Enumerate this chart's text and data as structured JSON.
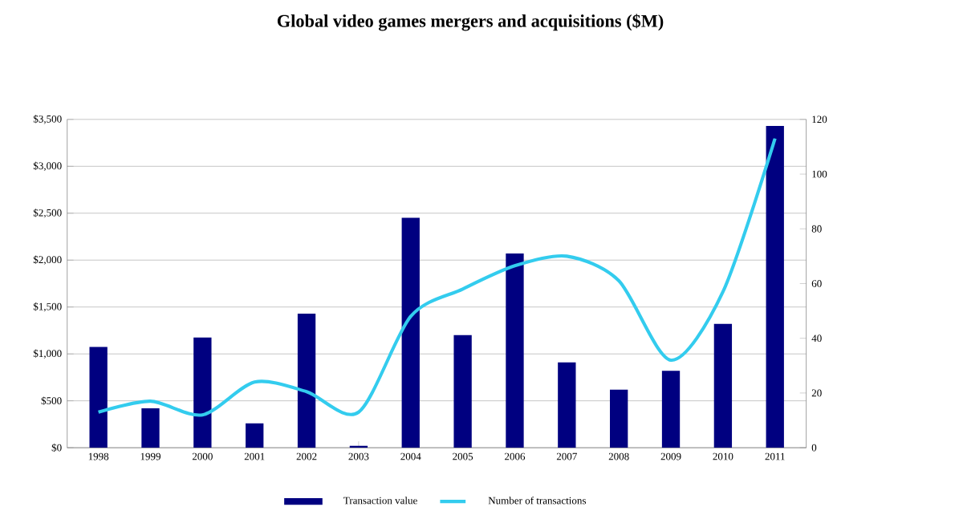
{
  "chart_data": {
    "type": "bar",
    "title": "Global video games mergers and acquisitions ($M)",
    "categories": [
      "1998",
      "1999",
      "2000",
      "2001",
      "2002",
      "2003",
      "2004",
      "2005",
      "2006",
      "2007",
      "2008",
      "2009",
      "2010",
      "2011"
    ],
    "series": [
      {
        "name": "Transaction value",
        "color": "#000080",
        "values": [
          1075,
          420,
          1175,
          260,
          1430,
          20,
          2450,
          1200,
          2070,
          910,
          620,
          820,
          1320,
          3430
        ]
      },
      {
        "name": "Number of transactions",
        "type": "line",
        "axis": "y2",
        "color": "#33ccee",
        "values": [
          13,
          17,
          12,
          24,
          20.5,
          13,
          48,
          58,
          66.5,
          70,
          61,
          32,
          57,
          113
        ]
      }
    ],
    "ylim": [
      0,
      3500
    ],
    "yticks": [
      {
        "value": 0,
        "label": "$0"
      },
      {
        "value": 500,
        "label": "$500"
      },
      {
        "value": 1000,
        "label": "$1,000"
      },
      {
        "value": 1500,
        "label": "$1,500"
      },
      {
        "value": 2000,
        "label": "$2,000"
      },
      {
        "value": 2500,
        "label": "$2,500"
      },
      {
        "value": 3000,
        "label": "$3,000"
      },
      {
        "value": 3500,
        "label": "$3,500"
      }
    ],
    "y2lim": [
      0,
      120
    ],
    "y2ticks": [
      0,
      20,
      40,
      60,
      80,
      100,
      120
    ],
    "grid": "y",
    "legend": "bottom"
  }
}
